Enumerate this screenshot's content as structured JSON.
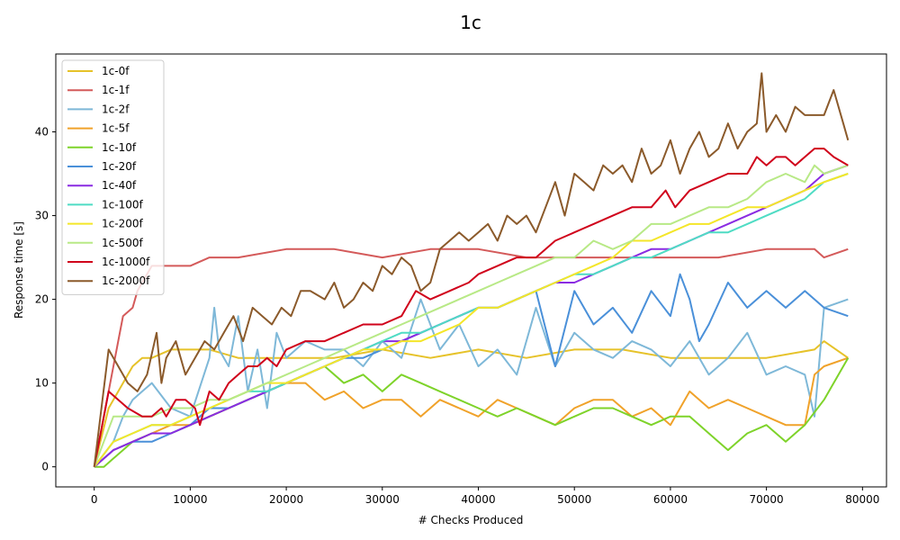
{
  "chart_data": {
    "type": "line",
    "title": "1c",
    "xlabel": "# Checks Produced",
    "ylabel": "Response time [s]",
    "xlim": [
      -4000,
      82500
    ],
    "ylim": [
      -2.4,
      49.3
    ],
    "xticks": [
      0,
      10000,
      20000,
      30000,
      40000,
      50000,
      60000,
      70000,
      80000
    ],
    "yticks": [
      0,
      10,
      20,
      30,
      40
    ],
    "grid": false,
    "legend_position": "top-left",
    "series": [
      {
        "name": "1c-0f",
        "color": "#e6c229",
        "x": [
          0,
          1500,
          3000,
          4000,
          5000,
          6000,
          8000,
          9000,
          12000,
          15000,
          20000,
          25000,
          30000,
          35000,
          40000,
          45000,
          50000,
          55000,
          60000,
          65000,
          70000,
          75000,
          76000,
          78500
        ],
        "y": [
          0,
          7,
          10,
          12,
          13,
          13,
          14,
          14,
          14,
          13,
          13,
          13,
          14,
          13,
          14,
          13,
          14,
          14,
          13,
          13,
          13,
          14,
          15,
          13
        ]
      },
      {
        "name": "1c-1f",
        "color": "#d45a5a",
        "x": [
          0,
          1000,
          2000,
          3000,
          4000,
          4500,
          5000,
          6000,
          7000,
          8000,
          10000,
          12000,
          15000,
          20000,
          25000,
          30000,
          35000,
          40000,
          45000,
          50000,
          55000,
          60000,
          65000,
          70000,
          75000,
          76000,
          78500
        ],
        "y": [
          0,
          6,
          12,
          18,
          19,
          21,
          22,
          24,
          24,
          24,
          24,
          25,
          25,
          26,
          26,
          25,
          26,
          26,
          25,
          25,
          25,
          25,
          25,
          26,
          26,
          25,
          26
        ]
      },
      {
        "name": "1c-2f",
        "color": "#7eb8d8",
        "x": [
          0,
          2000,
          3000,
          4000,
          5000,
          6000,
          8000,
          10000,
          12000,
          12500,
          13000,
          14000,
          15000,
          16000,
          17000,
          18000,
          19000,
          20000,
          22000,
          24000,
          26000,
          28000,
          30000,
          32000,
          34000,
          36000,
          38000,
          40000,
          42000,
          44000,
          46000,
          48000,
          50000,
          52000,
          54000,
          56000,
          58000,
          60000,
          62000,
          64000,
          66000,
          68000,
          70000,
          72000,
          74000,
          75000,
          76000,
          78500
        ],
        "y": [
          0,
          3,
          6,
          8,
          9,
          10,
          7,
          6,
          13,
          19,
          14,
          12,
          18,
          9,
          14,
          7,
          16,
          13,
          15,
          14,
          14,
          12,
          15,
          13,
          20,
          14,
          17,
          12,
          14,
          11,
          19,
          12,
          16,
          14,
          13,
          15,
          14,
          12,
          15,
          11,
          13,
          16,
          11,
          12,
          11,
          6,
          19,
          20
        ]
      },
      {
        "name": "1c-5f",
        "color": "#f0a22a",
        "x": [
          0,
          2000,
          4000,
          6000,
          8000,
          10000,
          12000,
          14000,
          16000,
          18000,
          20000,
          22000,
          24000,
          26000,
          28000,
          30000,
          32000,
          34000,
          36000,
          38000,
          40000,
          42000,
          44000,
          46000,
          48000,
          50000,
          52000,
          54000,
          56000,
          58000,
          60000,
          62000,
          64000,
          66000,
          68000,
          70000,
          72000,
          74000,
          75000,
          76000,
          78500
        ],
        "y": [
          0,
          2,
          3,
          4,
          5,
          5,
          6,
          7,
          8,
          9,
          10,
          10,
          8,
          9,
          7,
          8,
          8,
          6,
          8,
          7,
          6,
          8,
          7,
          6,
          5,
          7,
          8,
          8,
          6,
          7,
          5,
          9,
          7,
          8,
          7,
          6,
          5,
          5,
          11,
          12,
          13
        ]
      },
      {
        "name": "1c-10f",
        "color": "#7ed32a",
        "x": [
          0,
          1000,
          2000,
          4000,
          6000,
          8000,
          10000,
          12000,
          14000,
          16000,
          18000,
          20000,
          22000,
          24000,
          26000,
          28000,
          30000,
          32000,
          34000,
          36000,
          38000,
          40000,
          42000,
          44000,
          46000,
          48000,
          50000,
          52000,
          54000,
          56000,
          58000,
          60000,
          62000,
          64000,
          66000,
          68000,
          70000,
          72000,
          74000,
          76000,
          78500
        ],
        "y": [
          0,
          0,
          1,
          3,
          4,
          4,
          5,
          6,
          7,
          8,
          9,
          10,
          11,
          12,
          10,
          11,
          9,
          11,
          10,
          9,
          8,
          7,
          6,
          7,
          6,
          5,
          6,
          7,
          7,
          6,
          5,
          6,
          6,
          4,
          2,
          4,
          5,
          3,
          5,
          8,
          13
        ]
      },
      {
        "name": "1c-20f",
        "color": "#4a90d9",
        "x": [
          0,
          1000,
          2000,
          4000,
          6000,
          8000,
          10000,
          12000,
          14000,
          16000,
          18000,
          20000,
          22000,
          24000,
          26000,
          28000,
          30000,
          32000,
          34000,
          36000,
          38000,
          40000,
          42000,
          44000,
          46000,
          48000,
          50000,
          52000,
          54000,
          56000,
          58000,
          60000,
          61000,
          62000,
          63000,
          64000,
          66000,
          68000,
          70000,
          72000,
          74000,
          76000,
          78500
        ],
        "y": [
          0,
          1,
          2,
          3,
          3,
          4,
          5,
          7,
          7,
          8,
          9,
          10,
          11,
          12,
          13,
          13,
          14,
          15,
          16,
          17,
          18,
          19,
          19,
          20,
          21,
          12,
          21,
          17,
          19,
          16,
          21,
          18,
          23,
          20,
          15,
          17,
          22,
          19,
          21,
          19,
          21,
          19,
          18
        ]
      },
      {
        "name": "1c-40f",
        "color": "#8a2be2",
        "x": [
          0,
          2000,
          4000,
          6000,
          8000,
          10000,
          12000,
          14000,
          16000,
          18000,
          20000,
          22000,
          24000,
          26000,
          28000,
          30000,
          32000,
          34000,
          36000,
          38000,
          40000,
          42000,
          44000,
          46000,
          48000,
          50000,
          52000,
          54000,
          56000,
          58000,
          60000,
          62000,
          64000,
          66000,
          68000,
          70000,
          72000,
          74000,
          76000,
          78500
        ],
        "y": [
          0,
          2,
          3,
          4,
          4,
          5,
          6,
          7,
          8,
          9,
          10,
          11,
          12,
          13,
          14,
          15,
          15,
          16,
          17,
          18,
          19,
          19,
          20,
          21,
          22,
          22,
          23,
          24,
          25,
          26,
          26,
          27,
          28,
          29,
          30,
          31,
          32,
          33,
          35,
          36
        ]
      },
      {
        "name": "1c-100f",
        "color": "#4fdcc4",
        "x": [
          0,
          2000,
          4000,
          6000,
          8000,
          10000,
          12000,
          14000,
          16000,
          18000,
          20000,
          22000,
          24000,
          26000,
          28000,
          30000,
          32000,
          34000,
          36000,
          38000,
          40000,
          42000,
          44000,
          46000,
          48000,
          50000,
          52000,
          54000,
          56000,
          58000,
          60000,
          62000,
          64000,
          66000,
          68000,
          70000,
          72000,
          74000,
          76000,
          78500
        ],
        "y": [
          0,
          3,
          4,
          5,
          5,
          6,
          7,
          8,
          9,
          9,
          10,
          11,
          12,
          13,
          14,
          15,
          16,
          16,
          17,
          18,
          19,
          19,
          20,
          21,
          22,
          23,
          23,
          24,
          25,
          25,
          26,
          27,
          28,
          28,
          29,
          30,
          31,
          32,
          34,
          35
        ]
      },
      {
        "name": "1c-200f",
        "color": "#f4e629",
        "x": [
          0,
          2000,
          4000,
          6000,
          8000,
          10000,
          12000,
          14000,
          16000,
          18000,
          20000,
          22000,
          24000,
          26000,
          28000,
          30000,
          32000,
          34000,
          36000,
          38000,
          40000,
          42000,
          44000,
          46000,
          48000,
          50000,
          52000,
          54000,
          56000,
          58000,
          60000,
          62000,
          64000,
          66000,
          68000,
          70000,
          72000,
          74000,
          76000,
          78500
        ],
        "y": [
          0,
          3,
          4,
          5,
          5,
          6,
          7,
          8,
          9,
          10,
          10,
          11,
          12,
          13,
          14,
          14,
          15,
          15,
          16,
          17,
          19,
          19,
          20,
          21,
          22,
          23,
          24,
          25,
          27,
          27,
          28,
          29,
          29,
          30,
          31,
          31,
          32,
          33,
          34,
          35
        ]
      },
      {
        "name": "1c-500f",
        "color": "#b8e986",
        "x": [
          0,
          2000,
          4000,
          6000,
          8000,
          10000,
          12000,
          14000,
          16000,
          18000,
          20000,
          22000,
          24000,
          26000,
          28000,
          30000,
          32000,
          34000,
          36000,
          38000,
          40000,
          42000,
          44000,
          46000,
          48000,
          50000,
          52000,
          54000,
          56000,
          58000,
          60000,
          62000,
          64000,
          66000,
          68000,
          70000,
          72000,
          74000,
          75000,
          76000,
          78500
        ],
        "y": [
          0,
          6,
          6,
          6,
          7,
          7,
          8,
          8,
          9,
          10,
          11,
          12,
          13,
          14,
          15,
          16,
          17,
          18,
          19,
          20,
          21,
          22,
          23,
          24,
          25,
          25,
          27,
          26,
          27,
          29,
          29,
          30,
          31,
          31,
          32,
          34,
          35,
          34,
          36,
          35,
          36
        ]
      },
      {
        "name": "1c-1000f",
        "color": "#d0021b",
        "x": [
          0,
          1500,
          2500,
          3500,
          5000,
          6000,
          7000,
          7500,
          8500,
          9500,
          10500,
          11000,
          12000,
          13000,
          14000,
          15000,
          16000,
          17000,
          18000,
          19000,
          20000,
          22000,
          24000,
          26000,
          28000,
          30000,
          32000,
          33500,
          35000,
          37000,
          39000,
          40000,
          42000,
          44000,
          46000,
          48000,
          50000,
          52000,
          54000,
          56000,
          58000,
          59500,
          60500,
          62000,
          64000,
          66000,
          68000,
          69000,
          70000,
          71000,
          72000,
          73000,
          74000,
          75000,
          76000,
          77000,
          78500
        ],
        "y": [
          0,
          9,
          8,
          7,
          6,
          6,
          7,
          6,
          8,
          8,
          7,
          5,
          9,
          8,
          10,
          11,
          12,
          12,
          13,
          12,
          14,
          15,
          15,
          16,
          17,
          17,
          18,
          21,
          20,
          21,
          22,
          23,
          24,
          25,
          25,
          27,
          28,
          29,
          30,
          31,
          31,
          33,
          31,
          33,
          34,
          35,
          35,
          37,
          36,
          37,
          37,
          36,
          37,
          38,
          38,
          37,
          36
        ]
      },
      {
        "name": "1c-2000f",
        "color": "#8b5a2b",
        "x": [
          0,
          1500,
          2500,
          3500,
          4500,
          5000,
          5500,
          6500,
          7000,
          7500,
          8500,
          9500,
          10500,
          11500,
          12500,
          13500,
          14500,
          15500,
          16500,
          17500,
          18500,
          19500,
          20500,
          21500,
          22500,
          24000,
          25000,
          26000,
          27000,
          28000,
          29000,
          30000,
          31000,
          32000,
          33000,
          34000,
          35000,
          36000,
          37000,
          38000,
          39000,
          40000,
          41000,
          42000,
          43000,
          44000,
          45000,
          46000,
          47000,
          48000,
          49000,
          50000,
          51000,
          52000,
          53000,
          54000,
          55000,
          56000,
          57000,
          58000,
          59000,
          60000,
          61000,
          62000,
          63000,
          64000,
          65000,
          66000,
          67000,
          68000,
          69000,
          69500,
          70000,
          71000,
          72000,
          73000,
          74000,
          75000,
          76000,
          77000,
          78000,
          78500
        ],
        "y": [
          0,
          14,
          12,
          10,
          9,
          10,
          11,
          16,
          10,
          13,
          15,
          11,
          13,
          15,
          14,
          16,
          18,
          15,
          19,
          18,
          17,
          19,
          18,
          21,
          21,
          20,
          22,
          19,
          20,
          22,
          21,
          24,
          23,
          25,
          24,
          21,
          22,
          26,
          27,
          28,
          27,
          28,
          29,
          27,
          30,
          29,
          30,
          28,
          31,
          34,
          30,
          35,
          34,
          33,
          36,
          35,
          36,
          34,
          38,
          35,
          36,
          39,
          35,
          38,
          40,
          37,
          38,
          41,
          38,
          40,
          41,
          47,
          40,
          42,
          40,
          43,
          42,
          42,
          42,
          45,
          41,
          39
        ]
      }
    ]
  }
}
